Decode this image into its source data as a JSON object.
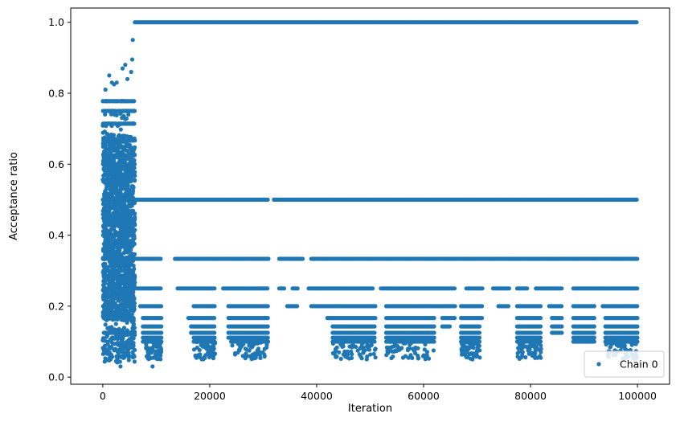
{
  "chart_data": {
    "type": "scatter",
    "title": "",
    "xlabel": "Iteration",
    "ylabel": "Acceptance ratio",
    "xlim": [
      -6000,
      106000
    ],
    "ylim": [
      -0.02,
      1.04
    ],
    "xticks": [
      0,
      20000,
      40000,
      60000,
      80000,
      100000
    ],
    "yticks": [
      0.0,
      0.2,
      0.4,
      0.6,
      0.8,
      1.0
    ],
    "xtick_labels": [
      "0",
      "20000",
      "40000",
      "60000",
      "80000",
      "100000"
    ],
    "ytick_labels": [
      "0.0",
      "0.2",
      "0.4",
      "0.6",
      "0.8",
      "1.0"
    ],
    "grid": false,
    "legend_position": "lower-right",
    "marker_color": "#1f77b4",
    "series": [
      {
        "name": "Chain 0",
        "burn_in": {
          "x_range": [
            0,
            6000
          ],
          "y_dense_range": [
            0.05,
            0.75
          ],
          "outliers": [
            {
              "x": 5600,
              "y": 0.95
            },
            {
              "x": 5500,
              "y": 0.895
            },
            {
              "x": 4200,
              "y": 0.88
            },
            {
              "x": 3700,
              "y": 0.87
            },
            {
              "x": 5300,
              "y": 0.86
            },
            {
              "x": 1200,
              "y": 0.85
            },
            {
              "x": 1700,
              "y": 0.83
            },
            {
              "x": 2100,
              "y": 0.825
            },
            {
              "x": 500,
              "y": 0.81
            },
            {
              "x": 4600,
              "y": 0.84
            },
            {
              "x": 2600,
              "y": 0.83
            },
            {
              "x": 9300,
              "y": 0.03
            },
            {
              "x": 3300,
              "y": 0.03
            }
          ]
        },
        "levels": [
          {
            "y": 1.0,
            "segments": [
              [
                6000,
                100000
              ]
            ]
          },
          {
            "y": 0.5,
            "segments": [
              [
                6000,
                31000
              ],
              [
                32000,
                100000
              ]
            ]
          },
          {
            "y": 0.3333,
            "segments": [
              [
                6000,
                11000
              ],
              [
                13500,
                31000
              ],
              [
                33000,
                37500
              ],
              [
                39000,
                100000
              ]
            ]
          },
          {
            "y": 0.25,
            "segments": [
              [
                6000,
                11000
              ],
              [
                14000,
                21000
              ],
              [
                22500,
                31000
              ],
              [
                33000,
                34000
              ],
              [
                35500,
                36500
              ],
              [
                38500,
                50500
              ],
              [
                52000,
                66000
              ],
              [
                68000,
                71000
              ],
              [
                73000,
                76000
              ],
              [
                77500,
                79500
              ],
              [
                81000,
                86000
              ],
              [
                88000,
                100000
              ]
            ]
          },
          {
            "y": 0.2,
            "segments": [
              [
                7000,
                11000
              ],
              [
                17000,
                21000
              ],
              [
                23500,
                31000
              ],
              [
                34500,
                36500
              ],
              [
                39000,
                51000
              ],
              [
                53000,
                66000
              ],
              [
                67000,
                71000
              ],
              [
                74000,
                76000
              ],
              [
                77500,
                82000
              ],
              [
                83500,
                86000
              ],
              [
                88000,
                92000
              ],
              [
                93500,
                100000
              ]
            ]
          },
          {
            "y": 0.1667,
            "segments": [
              [
                7500,
                11000
              ],
              [
                16000,
                21000
              ],
              [
                23500,
                31000
              ],
              [
                42000,
                51000
              ],
              [
                53000,
                62000
              ],
              [
                63500,
                66000
              ],
              [
                67000,
                71000
              ],
              [
                77500,
                82000
              ],
              [
                84000,
                86000
              ],
              [
                88000,
                92000
              ],
              [
                94000,
                100000
              ]
            ]
          },
          {
            "y": 0.1429,
            "segments": [
              [
                7500,
                11000
              ],
              [
                16500,
                21000
              ],
              [
                23500,
                31000
              ],
              [
                43000,
                51000
              ],
              [
                53000,
                62000
              ],
              [
                63500,
                65000
              ],
              [
                67000,
                70500
              ],
              [
                77500,
                82000
              ],
              [
                84000,
                86000
              ],
              [
                88000,
                92000
              ],
              [
                94000,
                100000
              ]
            ]
          },
          {
            "y": 0.125,
            "segments": [
              [
                7500,
                11000
              ],
              [
                16500,
                21000
              ],
              [
                23500,
                31000
              ],
              [
                43000,
                51000
              ],
              [
                53000,
                62000
              ],
              [
                67000,
                70500
              ],
              [
                77500,
                82000
              ],
              [
                84000,
                86000
              ],
              [
                88000,
                92000
              ],
              [
                94000,
                100000
              ]
            ]
          },
          {
            "y": 0.1111,
            "segments": [
              [
                7500,
                11000
              ],
              [
                17000,
                21000
              ],
              [
                23500,
                31000
              ],
              [
                43000,
                51000
              ],
              [
                53000,
                62000
              ],
              [
                67000,
                70500
              ],
              [
                77500,
                82000
              ],
              [
                88000,
                92000
              ],
              [
                94000,
                100000
              ]
            ]
          },
          {
            "y": 0.1,
            "segments": [
              [
                7500,
                11000
              ],
              [
                17000,
                21000
              ],
              [
                24000,
                31000
              ],
              [
                43000,
                51000
              ],
              [
                53000,
                62000
              ],
              [
                67000,
                70500
              ],
              [
                77500,
                82000
              ],
              [
                88000,
                92000
              ],
              [
                94000,
                100000
              ]
            ]
          }
        ]
      }
    ]
  }
}
